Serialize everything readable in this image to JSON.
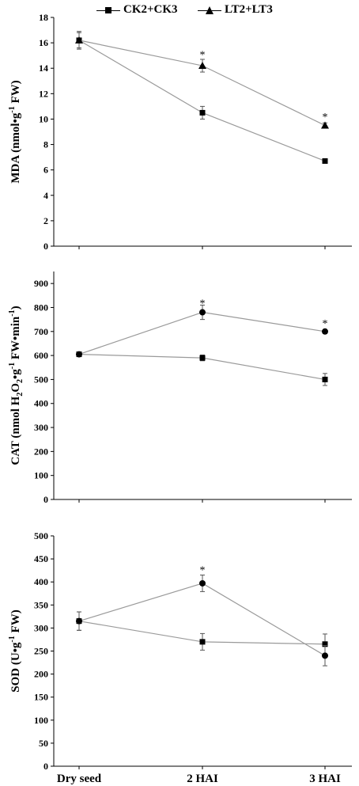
{
  "legend": {
    "series1": "CK2+CK3",
    "series2": "LT2+LT3"
  },
  "chart_data": [
    {
      "type": "line",
      "ylabel": "MDA (nmol•g-1 FW)",
      "ylabel_parts": [
        "MDA (nmol",
        "•",
        "g",
        "-1",
        " FW)"
      ],
      "ylim": [
        0,
        18
      ],
      "yticks": [
        0,
        2,
        4,
        6,
        8,
        10,
        12,
        14,
        16,
        18
      ],
      "categories": [
        "Dry seed",
        "2 HAI",
        "3 HAI"
      ],
      "series": [
        {
          "name": "CK2+CK3",
          "marker": "square",
          "values": [
            16.2,
            10.5,
            6.7
          ],
          "errors": [
            0.6,
            0.5,
            0.1
          ]
        },
        {
          "name": "LT2+LT3",
          "marker": "triangle",
          "values": [
            16.2,
            14.2,
            9.5
          ],
          "errors": [
            0.7,
            0.5,
            0.2
          ]
        }
      ],
      "annotations": [
        {
          "category": "2 HAI",
          "y": 15.1,
          "text": "*"
        },
        {
          "category": "3 HAI",
          "y": 10.2,
          "text": "*"
        }
      ]
    },
    {
      "type": "line",
      "ylabel": "CAT (nmol H2O2•g-1 FW•min-1)",
      "ylabel_parts": [
        "CAT (nmol H",
        "2",
        "O",
        "2",
        "•",
        "g",
        "-1",
        " FW•min",
        "-1",
        ")"
      ],
      "ylim": [
        0,
        950
      ],
      "yticks": [
        0,
        100,
        200,
        300,
        400,
        500,
        600,
        700,
        800,
        900
      ],
      "categories": [
        "Dry seed",
        "2 HAI",
        "3 HAI"
      ],
      "series": [
        {
          "marker": "square",
          "values": [
            605,
            590,
            500
          ],
          "errors": [
            8,
            12,
            25
          ]
        },
        {
          "marker": "circle",
          "values": [
            605,
            780,
            700
          ],
          "errors": [
            8,
            30,
            8
          ]
        }
      ],
      "annotations": [
        {
          "category": "2 HAI",
          "y": 820,
          "text": "*"
        },
        {
          "category": "3 HAI",
          "y": 735,
          "text": "*"
        }
      ]
    },
    {
      "type": "line",
      "ylabel": "SOD (U•g-1 FW)",
      "ylabel_parts": [
        "SOD (U",
        "•",
        "g",
        "-1",
        " FW)"
      ],
      "ylim": [
        0,
        500
      ],
      "yticks": [
        0,
        50,
        100,
        150,
        200,
        250,
        300,
        350,
        400,
        450,
        500
      ],
      "categories": [
        "Dry seed",
        "2 HAI",
        "3 HAI"
      ],
      "series": [
        {
          "marker": "square",
          "values": [
            315,
            270,
            265
          ],
          "errors": [
            20,
            18,
            22
          ]
        },
        {
          "marker": "circle",
          "values": [
            315,
            397,
            240
          ],
          "errors": [
            20,
            18,
            22
          ]
        }
      ],
      "annotations": [
        {
          "category": "2 HAI",
          "y": 427,
          "text": "*"
        }
      ]
    }
  ]
}
